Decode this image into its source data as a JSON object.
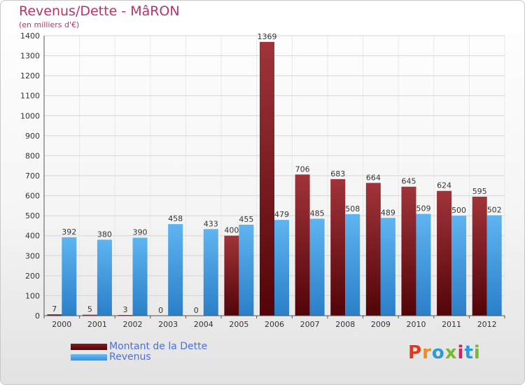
{
  "title": "Revenus/Dette - MâRON",
  "unit": "(en milliers d'€)",
  "logo_text": "Proxiti",
  "logo_colors": [
    "#e03a1e",
    "#f08a1c",
    "#2a9ad8",
    "#7cb82f",
    "#d4205a",
    "#2a9ad8",
    "#7cb82f"
  ],
  "chart_data": {
    "type": "bar",
    "categories": [
      "2000",
      "2001",
      "2002",
      "2003",
      "2004",
      "2005",
      "2006",
      "2007",
      "2008",
      "2009",
      "2010",
      "2011",
      "2012"
    ],
    "series": [
      {
        "name": "Montant de la Dette",
        "color": "#6b0c10",
        "values": [
          7,
          5,
          3,
          0,
          0,
          400,
          1369,
          706,
          683,
          664,
          645,
          624,
          595
        ]
      },
      {
        "name": "Revenus",
        "color": "#4aa3e8",
        "values": [
          392,
          380,
          390,
          458,
          433,
          455,
          479,
          485,
          508,
          489,
          509,
          500,
          502
        ]
      }
    ],
    "ylim": [
      0,
      1400
    ],
    "yticks": [
      0,
      100,
      200,
      300,
      400,
      500,
      600,
      700,
      800,
      900,
      1000,
      1100,
      1200,
      1300,
      1400
    ],
    "grid": true,
    "legend": "bottom-left"
  }
}
